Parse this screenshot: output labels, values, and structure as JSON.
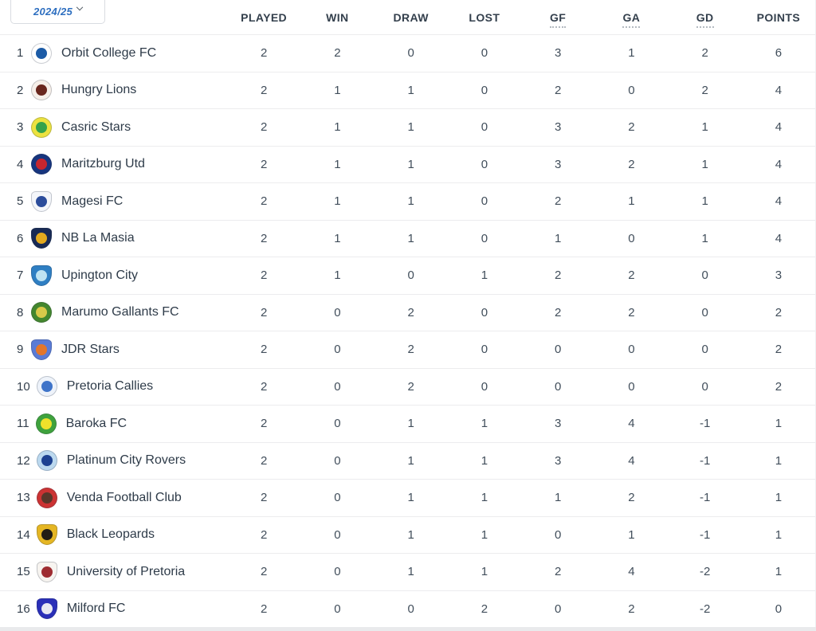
{
  "season_selector": {
    "value": "2024/25",
    "chevron_icon": "chevron-down-icon"
  },
  "colors": {
    "accent_blue": "#2e6fc0",
    "header_text": "#333f4c",
    "body_text": "#2e3b49",
    "row_divider": "#ececee",
    "bottom_band": "#e9eaec"
  },
  "table": {
    "columns": [
      {
        "key": "played",
        "label": "PLAYED",
        "underlined": false
      },
      {
        "key": "win",
        "label": "WIN",
        "underlined": false
      },
      {
        "key": "draw",
        "label": "DRAW",
        "underlined": false
      },
      {
        "key": "lost",
        "label": "LOST",
        "underlined": false
      },
      {
        "key": "gf",
        "label": "GF",
        "underlined": true
      },
      {
        "key": "ga",
        "label": "GA",
        "underlined": true
      },
      {
        "key": "gd",
        "label": "GD",
        "underlined": true
      },
      {
        "key": "points",
        "label": "POINTS",
        "underlined": false
      }
    ],
    "rows": [
      {
        "rank": 1,
        "team": "Orbit College FC",
        "played": 2,
        "win": 2,
        "draw": 0,
        "lost": 0,
        "gf": 3,
        "ga": 1,
        "gd": 2,
        "points": 6,
        "logo": {
          "icon": "orbit-college-fc-logo",
          "shape": "circle",
          "c1": "#ffffff",
          "c2": "#1c5ba6"
        }
      },
      {
        "rank": 2,
        "team": "Hungry Lions",
        "played": 2,
        "win": 1,
        "draw": 1,
        "lost": 0,
        "gf": 2,
        "ga": 0,
        "gd": 2,
        "points": 4,
        "logo": {
          "icon": "hungry-lions-logo",
          "shape": "circle",
          "c1": "#f6efe9",
          "c2": "#69261d"
        }
      },
      {
        "rank": 3,
        "team": "Casric Stars",
        "played": 2,
        "win": 1,
        "draw": 1,
        "lost": 0,
        "gf": 3,
        "ga": 2,
        "gd": 1,
        "points": 4,
        "logo": {
          "icon": "casric-stars-logo",
          "shape": "circle",
          "c1": "#ece23f",
          "c2": "#35a24b"
        }
      },
      {
        "rank": 4,
        "team": "Maritzburg Utd",
        "played": 2,
        "win": 1,
        "draw": 1,
        "lost": 0,
        "gf": 3,
        "ga": 2,
        "gd": 1,
        "points": 4,
        "logo": {
          "icon": "maritzburg-utd-logo",
          "shape": "circle",
          "c1": "#17357e",
          "c2": "#c6262e"
        }
      },
      {
        "rank": 5,
        "team": "Magesi FC",
        "played": 2,
        "win": 1,
        "draw": 1,
        "lost": 0,
        "gf": 2,
        "ga": 1,
        "gd": 1,
        "points": 4,
        "logo": {
          "icon": "magesi-fc-logo",
          "shape": "shield",
          "c1": "#f4f6fa",
          "c2": "#2b4c9b"
        }
      },
      {
        "rank": 6,
        "team": "NB La Masia",
        "played": 2,
        "win": 1,
        "draw": 1,
        "lost": 0,
        "gf": 1,
        "ga": 0,
        "gd": 1,
        "points": 4,
        "logo": {
          "icon": "nb-la-masia-logo",
          "shape": "shield",
          "c1": "#182a55",
          "c2": "#e3aa1f"
        }
      },
      {
        "rank": 7,
        "team": "Upington City",
        "played": 2,
        "win": 1,
        "draw": 0,
        "lost": 1,
        "gf": 2,
        "ga": 2,
        "gd": 0,
        "points": 3,
        "logo": {
          "icon": "upington-city-logo",
          "shape": "shield",
          "c1": "#2f7fc3",
          "c2": "#bfe3f2"
        }
      },
      {
        "rank": 8,
        "team": "Marumo Gallants FC",
        "played": 2,
        "win": 0,
        "draw": 2,
        "lost": 0,
        "gf": 2,
        "ga": 2,
        "gd": 0,
        "points": 2,
        "logo": {
          "icon": "marumo-gallants-fc-logo",
          "shape": "circle",
          "c1": "#44872e",
          "c2": "#d9c94a"
        }
      },
      {
        "rank": 9,
        "team": "JDR Stars",
        "played": 2,
        "win": 0,
        "draw": 2,
        "lost": 0,
        "gf": 0,
        "ga": 0,
        "gd": 0,
        "points": 2,
        "logo": {
          "icon": "jdr-stars-logo",
          "shape": "shield",
          "c1": "#5a7bd6",
          "c2": "#e4762a"
        }
      },
      {
        "rank": 10,
        "team": "Pretoria Callies",
        "played": 2,
        "win": 0,
        "draw": 2,
        "lost": 0,
        "gf": 0,
        "ga": 0,
        "gd": 0,
        "points": 2,
        "logo": {
          "icon": "pretoria-callies-logo",
          "shape": "circle",
          "c1": "#eef3fa",
          "c2": "#3f74c9"
        }
      },
      {
        "rank": 11,
        "team": "Baroka FC",
        "played": 2,
        "win": 0,
        "draw": 1,
        "lost": 1,
        "gf": 3,
        "ga": 4,
        "gd": -1,
        "points": 1,
        "logo": {
          "icon": "baroka-fc-logo",
          "shape": "circle",
          "c1": "#3fa23c",
          "c2": "#efe12b"
        }
      },
      {
        "rank": 12,
        "team": "Platinum City Rovers",
        "played": 2,
        "win": 0,
        "draw": 1,
        "lost": 1,
        "gf": 3,
        "ga": 4,
        "gd": -1,
        "points": 1,
        "logo": {
          "icon": "platinum-city-rovers-logo",
          "shape": "circle",
          "c1": "#bcd9ef",
          "c2": "#1e4291"
        }
      },
      {
        "rank": 13,
        "team": "Venda Football Club",
        "played": 2,
        "win": 0,
        "draw": 1,
        "lost": 1,
        "gf": 1,
        "ga": 2,
        "gd": -1,
        "points": 1,
        "logo": {
          "icon": "venda-football-club-logo",
          "shape": "circle",
          "c1": "#cc3333",
          "c2": "#59372a"
        }
      },
      {
        "rank": 14,
        "team": "Black Leopards",
        "played": 2,
        "win": 0,
        "draw": 1,
        "lost": 1,
        "gf": 0,
        "ga": 1,
        "gd": -1,
        "points": 1,
        "logo": {
          "icon": "black-leopards-logo",
          "shape": "shield",
          "c1": "#e5b623",
          "c2": "#221d15"
        }
      },
      {
        "rank": 15,
        "team": "University of Pretoria",
        "played": 2,
        "win": 0,
        "draw": 1,
        "lost": 1,
        "gf": 2,
        "ga": 4,
        "gd": -2,
        "points": 1,
        "logo": {
          "icon": "university-of-pretoria-logo",
          "shape": "shield",
          "c1": "#f7f4f0",
          "c2": "#9e2c31"
        }
      },
      {
        "rank": 16,
        "team": "Milford FC",
        "played": 2,
        "win": 0,
        "draw": 0,
        "lost": 2,
        "gf": 0,
        "ga": 2,
        "gd": -2,
        "points": 0,
        "logo": {
          "icon": "milford-fc-logo",
          "shape": "shield",
          "c1": "#2a2fb8",
          "c2": "#e8e8f2"
        }
      }
    ]
  }
}
